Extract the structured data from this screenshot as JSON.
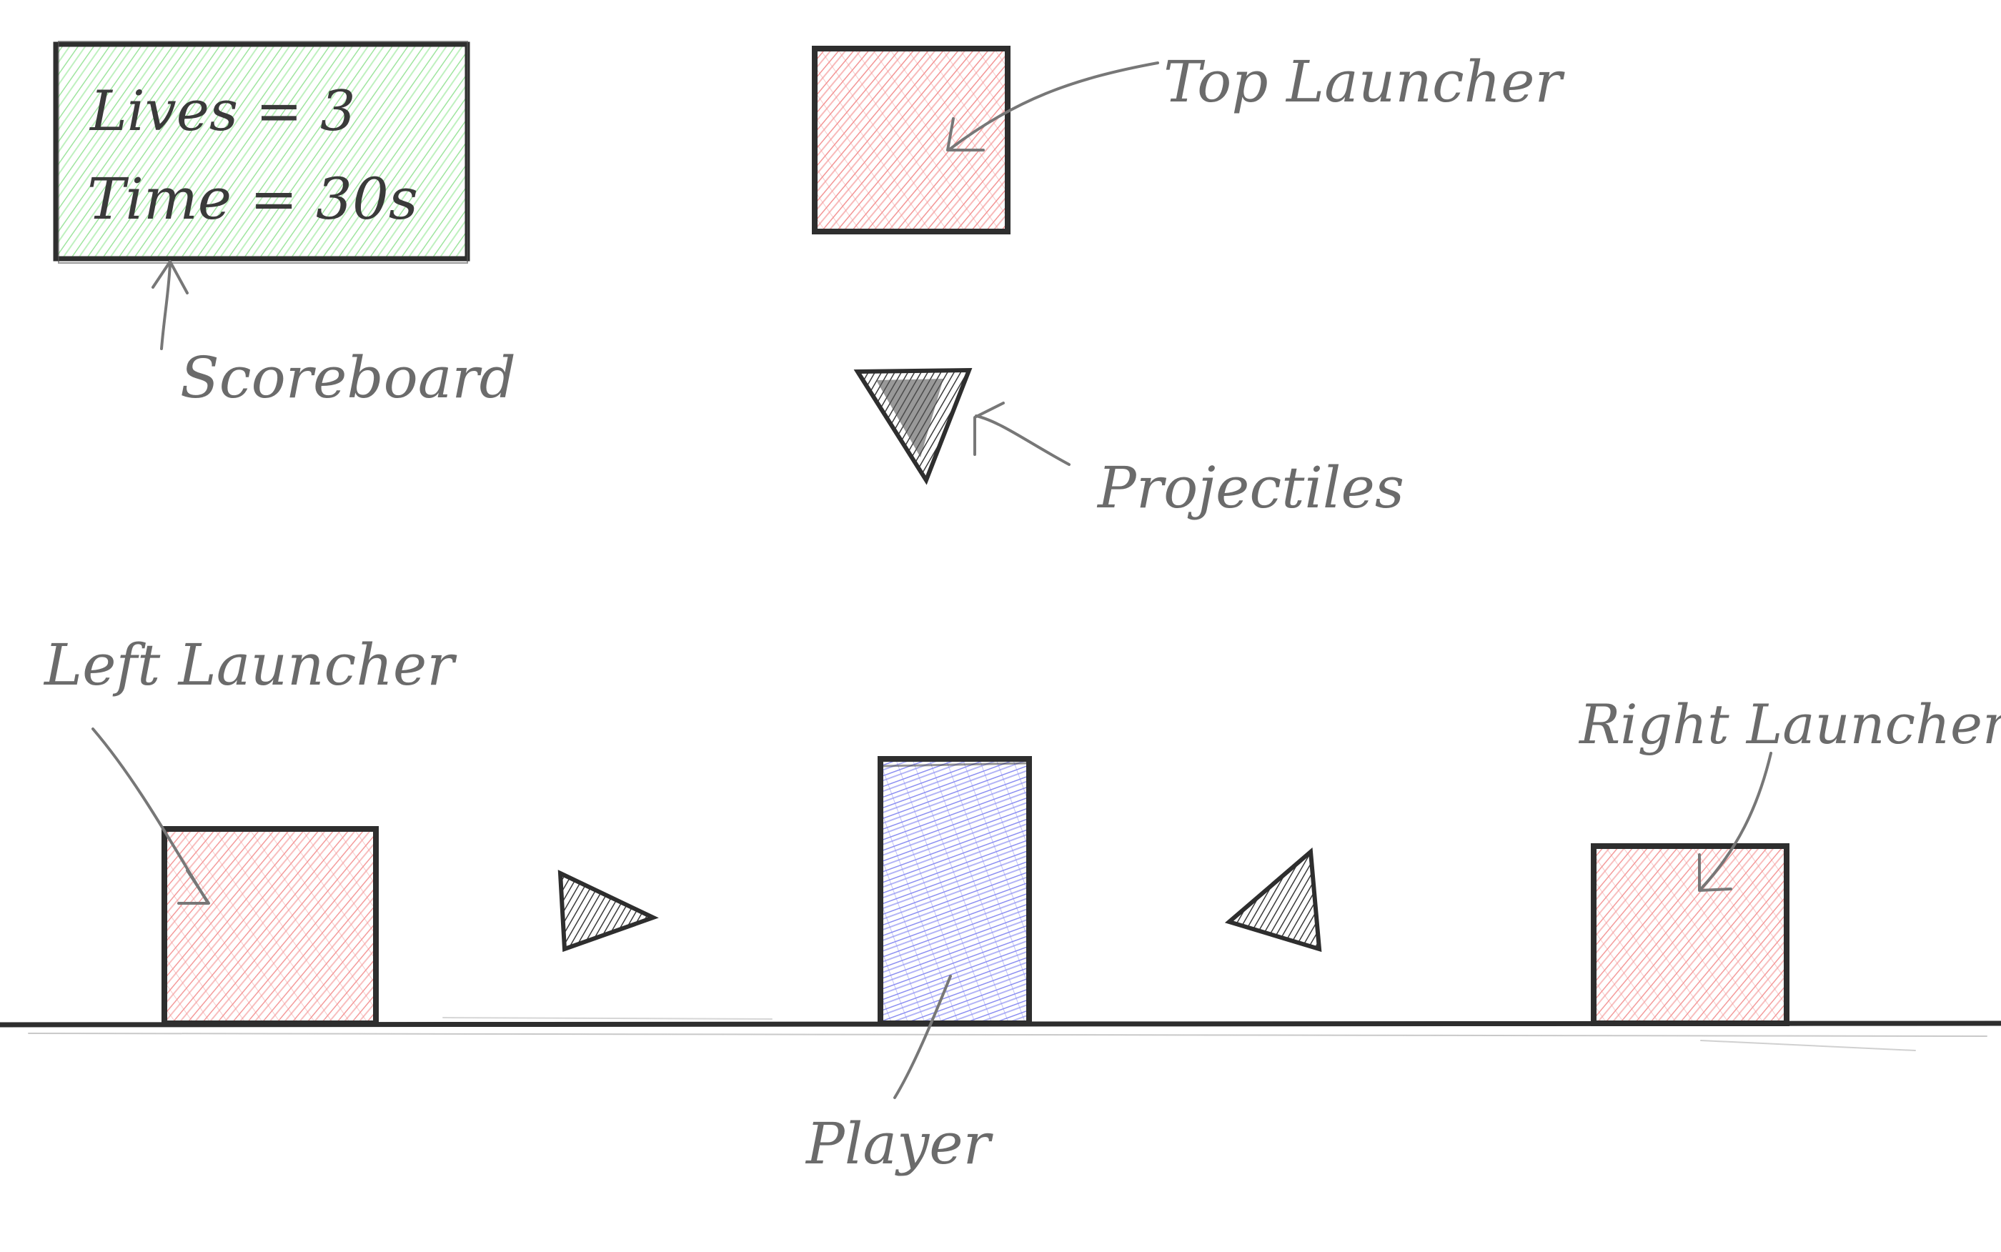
{
  "scoreboard": {
    "label": "Scoreboard",
    "lives_text": "Lives = 3",
    "time_text": "Time = 30s"
  },
  "labels": {
    "top_launcher": "Top Launcher",
    "left_launcher": "Left Launcher",
    "right_launcher": "Right Launcher",
    "projectiles": "Projectiles",
    "player": "Player"
  },
  "colors": {
    "launcher_fill": "#f28b8b",
    "player_fill": "#8a8cf0",
    "scoreboard_fill": "#9be89b",
    "outline": "#2e2e2e",
    "label_text": "#6b6b6b"
  }
}
